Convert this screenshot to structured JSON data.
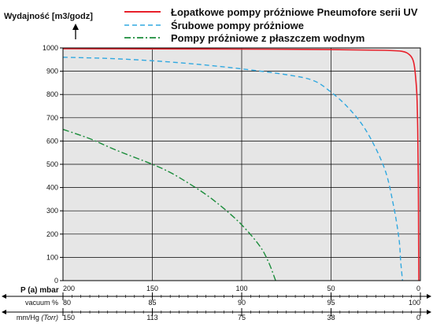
{
  "chart_data": {
    "type": "line",
    "ylabel": "Wydajność [m3/godz]",
    "ylim": [
      0,
      1000
    ],
    "yticks": [
      0,
      100,
      200,
      300,
      400,
      500,
      600,
      700,
      800,
      900,
      1000
    ],
    "x_axis_label": "P (a) mbar",
    "x_ticks_pa": [
      "200",
      "150",
      "100",
      "50",
      "0"
    ],
    "grid": true,
    "legend_placement": "top",
    "series": [
      {
        "name": "Łopatkowe pompy próżniowe Pneumofore serii UV",
        "color": "#e8202a",
        "style": "solid",
        "points": [
          [
            200,
            997
          ],
          [
            150,
            996
          ],
          [
            100,
            995
          ],
          [
            50,
            993
          ],
          [
            20,
            990
          ],
          [
            10,
            985
          ],
          [
            6,
            970
          ],
          [
            4,
            945
          ],
          [
            3,
            900
          ],
          [
            2,
            800
          ],
          [
            1.5,
            650
          ],
          [
            1.2,
            450
          ],
          [
            1,
            200
          ],
          [
            0.9,
            0
          ]
        ]
      },
      {
        "name": "Śrubowe pompy próżniowe",
        "color": "#30a8e0",
        "style": "dashed",
        "points": [
          [
            200,
            960
          ],
          [
            175,
            955
          ],
          [
            150,
            945
          ],
          [
            125,
            930
          ],
          [
            100,
            910
          ],
          [
            75,
            885
          ],
          [
            60,
            860
          ],
          [
            50,
            810
          ],
          [
            40,
            740
          ],
          [
            30,
            640
          ],
          [
            20,
            480
          ],
          [
            15,
            320
          ],
          [
            12,
            180
          ],
          [
            11,
            80
          ],
          [
            10,
            0
          ]
        ]
      },
      {
        "name": "Pompy próżniowe z płaszczem wodnym",
        "color": "#1a8c3a",
        "style": "dashdot",
        "points": [
          [
            200,
            650
          ],
          [
            185,
            610
          ],
          [
            170,
            560
          ],
          [
            150,
            500
          ],
          [
            140,
            465
          ],
          [
            130,
            420
          ],
          [
            120,
            370
          ],
          [
            110,
            310
          ],
          [
            100,
            240
          ],
          [
            90,
            150
          ],
          [
            85,
            80
          ],
          [
            81,
            0
          ]
        ]
      }
    ],
    "secondary_scales": [
      {
        "label": "vacuum %",
        "ticks": [
          "80",
          "85",
          "90",
          "95",
          "100"
        ]
      },
      {
        "label": "mm/Hg",
        "label_italic": "(Torr)",
        "ticks": [
          "150",
          "113",
          "75",
          "38",
          "0"
        ]
      }
    ]
  },
  "colors": {
    "plot_background": "#e6e6e6",
    "grid": "#000000"
  }
}
